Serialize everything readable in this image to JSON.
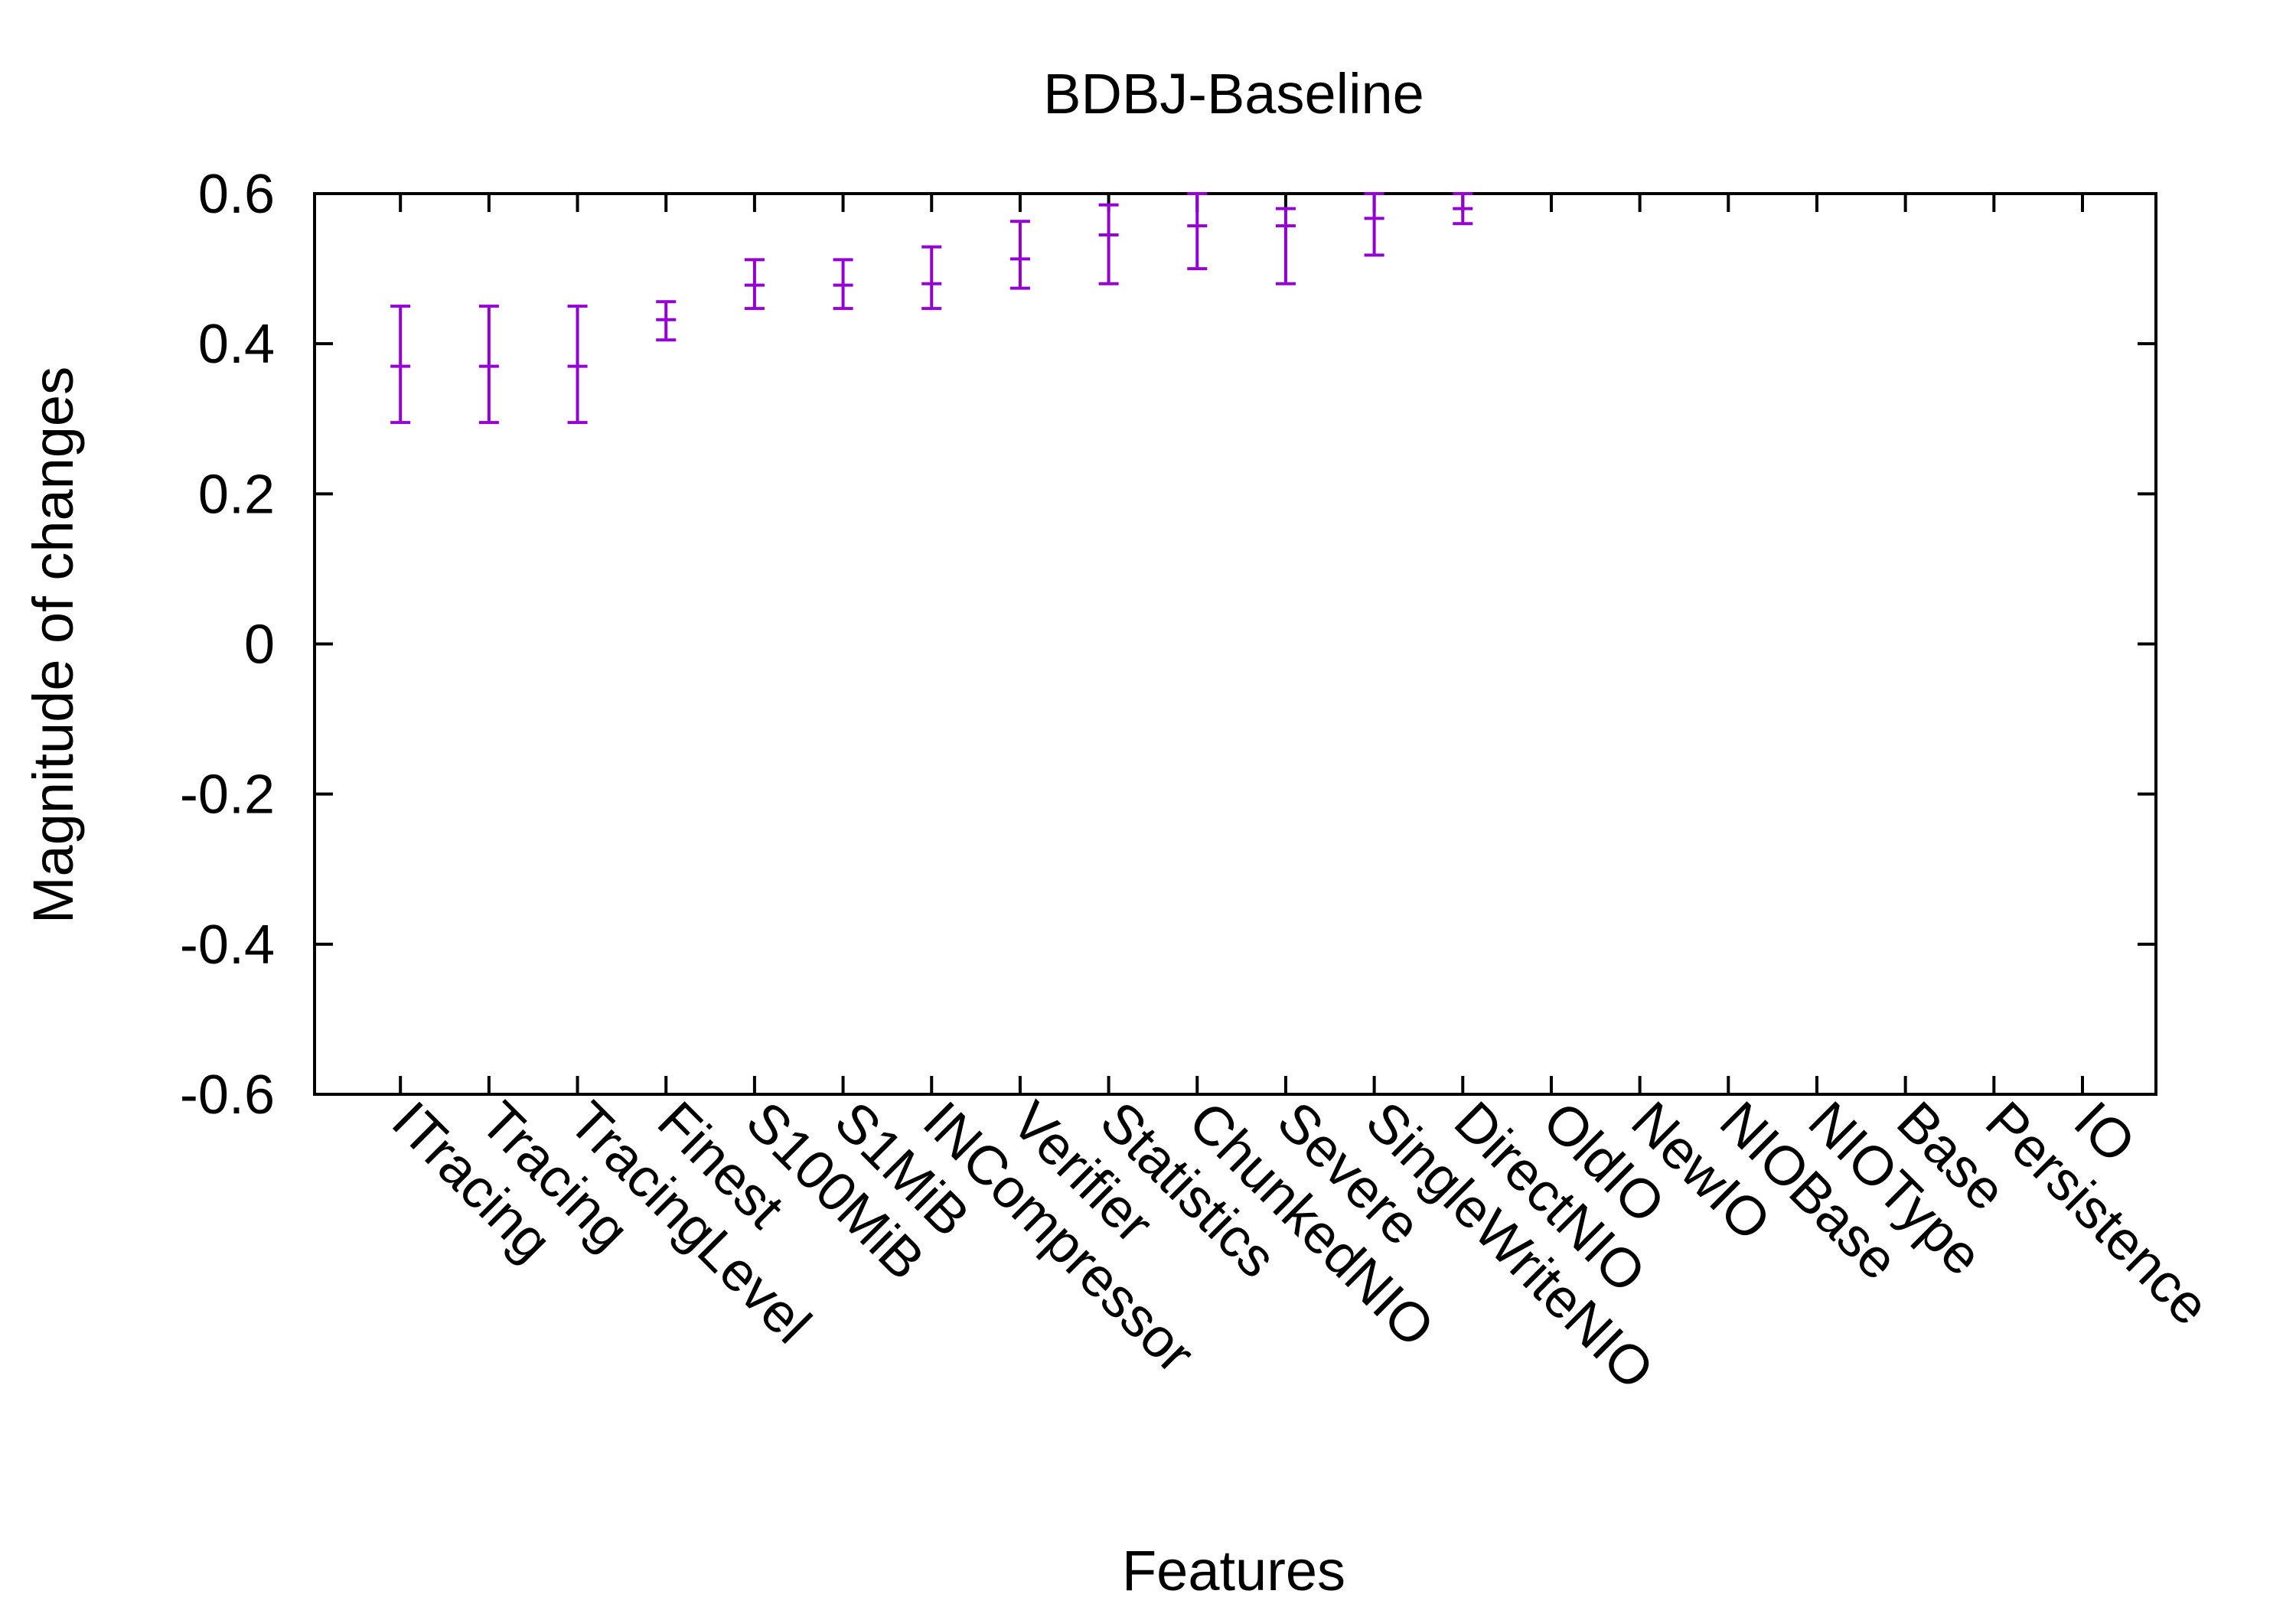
{
  "chart_data": {
    "type": "errorbar",
    "title": "BDBJ-Baseline",
    "xlabel": "Features",
    "ylabel": "Magnitude of changes",
    "ylim": [
      -0.6,
      0.6
    ],
    "yticks": [
      "0.6",
      "0.4",
      "0.2",
      "0",
      "-0.2",
      "-0.4",
      "-0.6"
    ],
    "grid": false,
    "legend": "none",
    "colors": {
      "errorbar": "#9400d3",
      "axis": "#000000"
    },
    "categories": [
      "ITracing",
      "Tracing",
      "TracingLevel",
      "Finest",
      "S100MiB",
      "S1MiB",
      "INCompressor",
      "Verifier",
      "Statistics",
      "ChunkedNIO",
      "Severe",
      "SingleWriteNIO",
      "DirectNIO",
      "OldIO",
      "NewIO",
      "NIOBase",
      "NIOType",
      "Base",
      "Persistence",
      "IO"
    ],
    "points": [
      {
        "label": "ITracing",
        "y": 0.37,
        "low": 0.295,
        "high": 0.45
      },
      {
        "label": "Tracing",
        "y": 0.37,
        "low": 0.295,
        "high": 0.45
      },
      {
        "label": "TracingLevel",
        "y": 0.37,
        "low": 0.295,
        "high": 0.45
      },
      {
        "label": "Finest",
        "y": 0.432,
        "low": 0.405,
        "high": 0.456
      },
      {
        "label": "S100MiB",
        "y": 0.478,
        "low": 0.447,
        "high": 0.512
      },
      {
        "label": "S1MiB",
        "y": 0.478,
        "low": 0.447,
        "high": 0.512
      },
      {
        "label": "INCompressor",
        "y": 0.48,
        "low": 0.447,
        "high": 0.529
      },
      {
        "label": "Verifier",
        "y": 0.513,
        "low": 0.474,
        "high": 0.563
      },
      {
        "label": "Statistics",
        "y": 0.545,
        "low": 0.48,
        "high": 0.585
      },
      {
        "label": "ChunkedNIO",
        "y": 0.557,
        "low": 0.5,
        "high": 0.6
      },
      {
        "label": "Severe",
        "y": 0.557,
        "low": 0.48,
        "high": 0.58
      },
      {
        "label": "SingleWriteNIO",
        "y": 0.567,
        "low": 0.518,
        "high": 0.6
      },
      {
        "label": "DirectNIO",
        "y": 0.58,
        "low": 0.56,
        "high": 0.6
      }
    ]
  }
}
